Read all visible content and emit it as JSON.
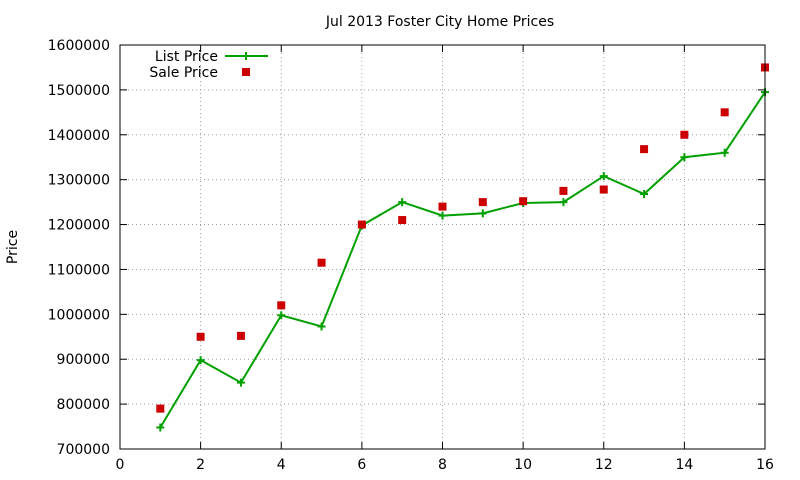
{
  "chart_data": {
    "type": "line",
    "title": "Jul 2013 Foster City Home Prices",
    "xlabel": "",
    "ylabel": "Price",
    "xlim": [
      0,
      16
    ],
    "ylim": [
      700000,
      1600000
    ],
    "x_ticks": [
      "0",
      "2",
      "4",
      "6",
      "8",
      "10",
      "12",
      "14",
      "16"
    ],
    "y_ticks": [
      "700000",
      "800000",
      "900000",
      "1000000",
      "1100000",
      "1200000",
      "1300000",
      "1400000",
      "1500000",
      "1600000"
    ],
    "grid": true,
    "legend_position": "top-left",
    "x": [
      1,
      2,
      3,
      4,
      5,
      6,
      7,
      8,
      9,
      10,
      11,
      12,
      13,
      14,
      15,
      16
    ],
    "series": [
      {
        "name": "List Price",
        "style": "line-with-plus-markers",
        "color": "#00a000",
        "values": [
          748000,
          898000,
          848000,
          998000,
          973000,
          1198000,
          1250000,
          1220000,
          1225000,
          1248000,
          1250000,
          1308000,
          1268000,
          1350000,
          1360000,
          1495000
        ]
      },
      {
        "name": "Sale Price",
        "style": "square-markers",
        "color": "#cc0000",
        "values": [
          790000,
          950000,
          952000,
          1020000,
          1115000,
          1200000,
          1210000,
          1240000,
          1250000,
          1252000,
          1275000,
          1278000,
          1368000,
          1400000,
          1450000,
          1550000
        ]
      }
    ]
  }
}
